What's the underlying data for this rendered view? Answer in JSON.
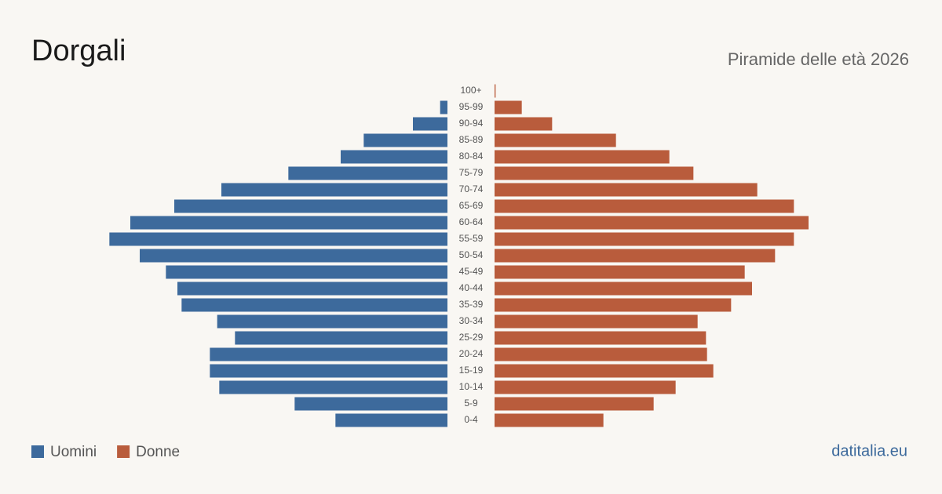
{
  "chart_data": {
    "type": "pyramid",
    "title": "Dorgali",
    "subtitle": "Piramide delle età 2026",
    "source": "datitalia.eu",
    "categories": [
      "100+",
      "95-99",
      "90-94",
      "85-89",
      "80-84",
      "75-79",
      "70-74",
      "65-69",
      "60-64",
      "55-59",
      "50-54",
      "45-49",
      "40-44",
      "35-39",
      "30-34",
      "25-29",
      "20-24",
      "15-19",
      "10-14",
      "5-9",
      "0-4"
    ],
    "series": [
      {
        "name": "Uomini",
        "color": "#3d6a9c",
        "values": [
          0,
          7,
          33,
          80,
          102,
          152,
          216,
          261,
          303,
          323,
          294,
          269,
          258,
          254,
          220,
          203,
          227,
          227,
          218,
          146,
          107
        ]
      },
      {
        "name": "Donne",
        "color": "#b95c3c",
        "values": [
          1,
          26,
          55,
          116,
          167,
          190,
          251,
          286,
          300,
          286,
          268,
          239,
          246,
          226,
          194,
          202,
          203,
          209,
          173,
          152,
          104
        ]
      }
    ],
    "xlim": [
      0,
      330
    ]
  }
}
